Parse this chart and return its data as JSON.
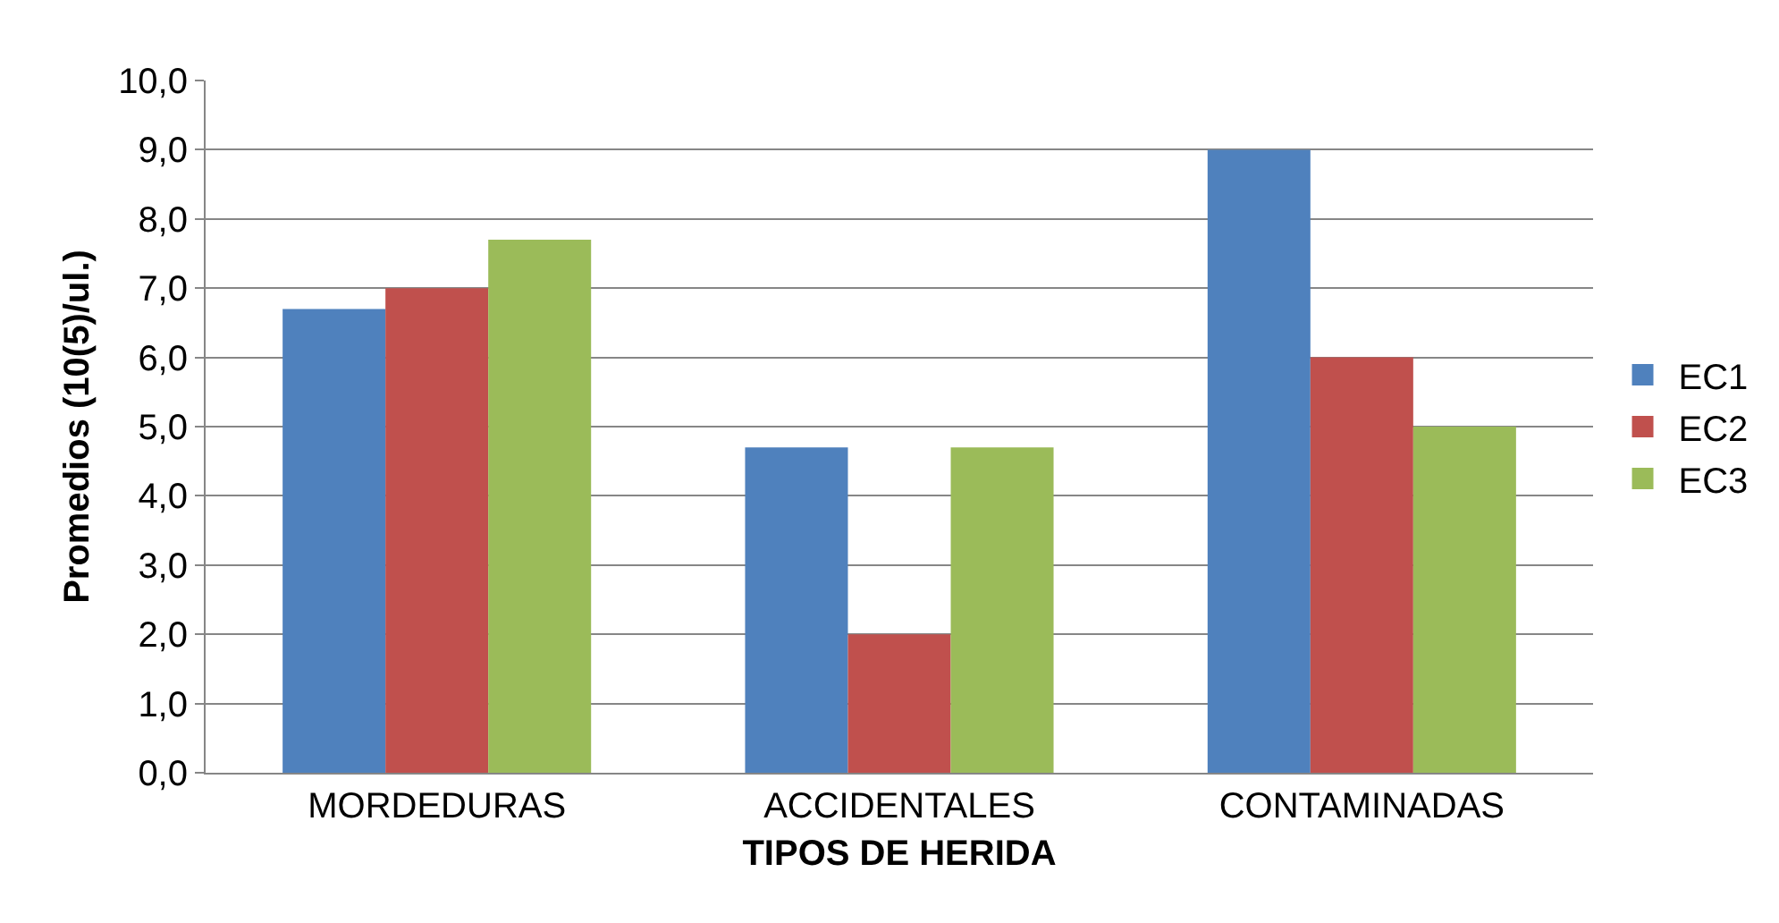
{
  "chart_data": {
    "type": "bar",
    "xlabel": "TIPOS DE HERIDA",
    "ylabel": "Promedios (10(5)/ul.)",
    "categories": [
      "MORDEDURAS",
      "ACCIDENTALES",
      "CONTAMINADAS"
    ],
    "series": [
      {
        "name": "EC1",
        "color": "#4f81bd",
        "values": [
          6.7,
          4.7,
          9.0
        ]
      },
      {
        "name": "EC2",
        "color": "#c0504d",
        "values": [
          7.0,
          2.0,
          6.0
        ]
      },
      {
        "name": "EC3",
        "color": "#9bbb59",
        "values": [
          7.7,
          4.7,
          5.0
        ]
      }
    ],
    "ylim": [
      0,
      10
    ],
    "yticks": [
      {
        "value": 0,
        "label": "0,0"
      },
      {
        "value": 1,
        "label": "1,0"
      },
      {
        "value": 2,
        "label": "2,0"
      },
      {
        "value": 3,
        "label": "3,0"
      },
      {
        "value": 4,
        "label": "4,0"
      },
      {
        "value": 5,
        "label": "5,0"
      },
      {
        "value": 6,
        "label": "6,0"
      },
      {
        "value": 7,
        "label": "7,0"
      },
      {
        "value": 8,
        "label": "8,0"
      },
      {
        "value": 9,
        "label": "9,0"
      },
      {
        "value": 10,
        "label": "10,0"
      }
    ],
    "grid": "y",
    "legend": "right"
  }
}
